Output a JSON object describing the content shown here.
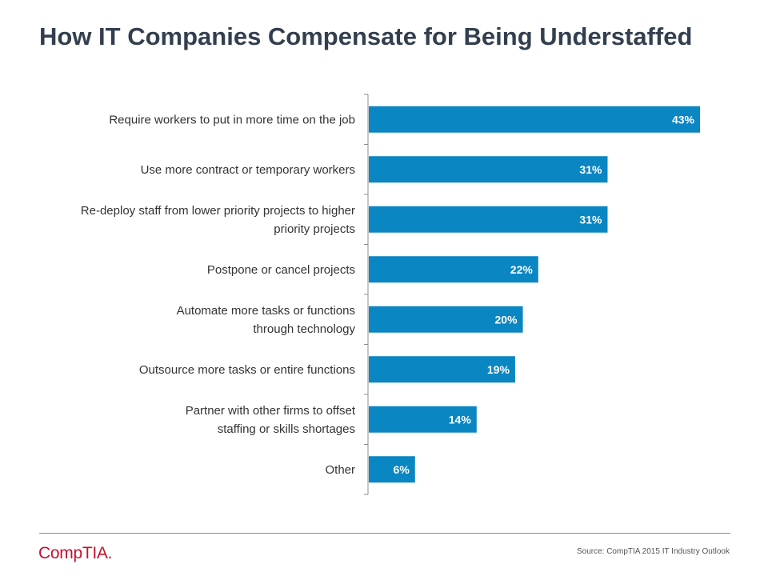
{
  "title": "How IT Companies Compensate for Being Understaffed",
  "source": "Source: CompTIA 2015 IT Industry Outlook",
  "logo_text": "CompTIA.",
  "colors": {
    "bar": "#0a86c3",
    "label_text": "#333333",
    "bar_label": "#ffffff",
    "axis": "#8c8c8c"
  },
  "chart_data": {
    "type": "bar",
    "orientation": "horizontal",
    "title": "How IT Companies Compensate for Being Understaffed",
    "categories": [
      [
        "Require workers to put in more time on the job"
      ],
      [
        "Use more contract or temporary workers"
      ],
      [
        "Re-deploy staff from lower priority projects to higher",
        "priority projects"
      ],
      [
        "Postpone or cancel projects"
      ],
      [
        "Automate more tasks or functions",
        "through technology"
      ],
      [
        "Outsource more tasks or entire functions"
      ],
      [
        "Partner with other firms to offset",
        "staffing or skills shortages"
      ],
      [
        "Other"
      ]
    ],
    "values": [
      43,
      31,
      31,
      22,
      20,
      19,
      14,
      6
    ],
    "value_labels": [
      "43%",
      "31%",
      "31%",
      "22%",
      "20%",
      "19%",
      "14%",
      "6%"
    ],
    "unit": "%",
    "xlim": [
      0,
      44
    ],
    "grid": false,
    "legend": "none"
  }
}
